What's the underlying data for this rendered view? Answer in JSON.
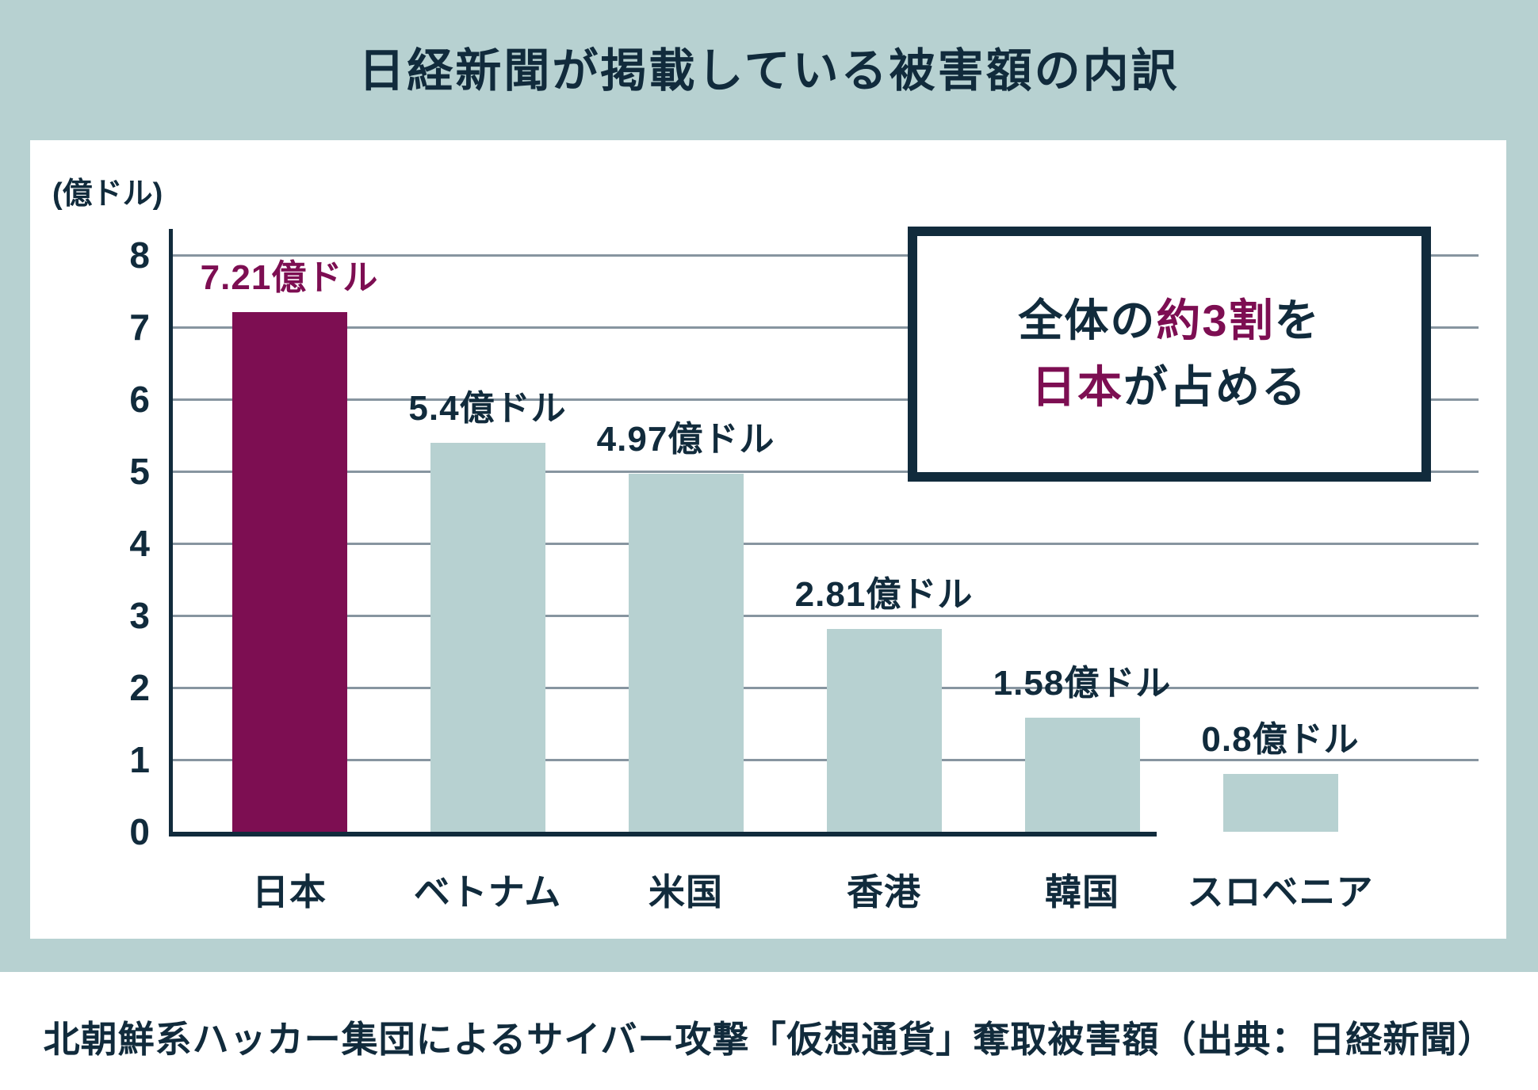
{
  "title": "日経新聞が掲載している被害額の内訳",
  "footer": "北朝鮮系ハッカー集団によるサイバー攻撃「仮想通貨」奪取被害額（出典：日経新聞）",
  "colors": {
    "background": "#b7d1d1",
    "panel": "#ffffff",
    "ink": "#112b3c",
    "accent": "#7d0e52",
    "bar": "#b7d1d1",
    "gridline": "#8795a0"
  },
  "annotation": {
    "line1_pre": "全体の",
    "line1_em": "約3割",
    "line1_post": "を",
    "line2_em": "日本",
    "line2_post": "が占める"
  },
  "chart_data": {
    "type": "bar",
    "title": "日経新聞が掲載している被害額の内訳",
    "unit_label": "(億ドル)",
    "categories": [
      "日本",
      "ベトナム",
      "米国",
      "香港",
      "韓国",
      "スロベニア"
    ],
    "values": [
      7.21,
      5.4,
      4.97,
      2.81,
      1.58,
      0.8
    ],
    "data_labels": [
      "7.21億ドル",
      "5.4億ドル",
      "4.97億ドル",
      "2.81億ドル",
      "1.58億ドル",
      "0.8億ドル"
    ],
    "highlight_index": 0,
    "xlabel": "",
    "ylabel": "(億ドル)",
    "ylim": [
      0,
      8
    ],
    "yticks": [
      0,
      1,
      2,
      3,
      4,
      5,
      6,
      7,
      8
    ],
    "grid": true,
    "legend": false,
    "annotation_text": "全体の約3割を日本が占める"
  }
}
